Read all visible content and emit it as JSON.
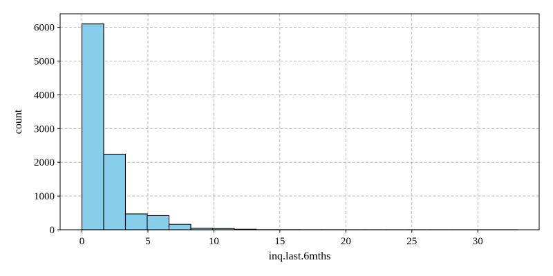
{
  "chart_data": {
    "type": "bar",
    "subtype": "histogram",
    "xlabel": "inq.last.6mths",
    "ylabel": "count",
    "xlim": [
      -1.65,
      34.65
    ],
    "ylim": [
      0,
      6400
    ],
    "xticks": [
      0,
      5,
      10,
      15,
      20,
      25,
      30
    ],
    "yticks": [
      0,
      1000,
      2000,
      3000,
      4000,
      5000,
      6000
    ],
    "grid": true,
    "bar_color": "#87CEEB",
    "edge_color": "#000000",
    "bins": [
      {
        "x0": 0.0,
        "x1": 1.65,
        "count": 6100
      },
      {
        "x0": 1.65,
        "x1": 3.3,
        "count": 2240
      },
      {
        "x0": 3.3,
        "x1": 4.95,
        "count": 470
      },
      {
        "x0": 4.95,
        "x1": 6.6,
        "count": 420
      },
      {
        "x0": 6.6,
        "x1": 8.25,
        "count": 160
      },
      {
        "x0": 8.25,
        "x1": 9.9,
        "count": 45
      },
      {
        "x0": 9.9,
        "x1": 11.55,
        "count": 35
      },
      {
        "x0": 11.55,
        "x1": 13.2,
        "count": 15
      },
      {
        "x0": 13.2,
        "x1": 14.85,
        "count": 4
      },
      {
        "x0": 14.85,
        "x1": 16.5,
        "count": 3
      },
      {
        "x0": 16.5,
        "x1": 18.15,
        "count": 2
      },
      {
        "x0": 18.15,
        "x1": 19.8,
        "count": 2
      },
      {
        "x0": 19.8,
        "x1": 21.45,
        "count": 1
      },
      {
        "x0": 21.45,
        "x1": 23.1,
        "count": 1
      },
      {
        "x0": 23.1,
        "x1": 24.75,
        "count": 1
      },
      {
        "x0": 24.75,
        "x1": 26.4,
        "count": 1
      },
      {
        "x0": 26.4,
        "x1": 28.05,
        "count": 1
      },
      {
        "x0": 28.05,
        "x1": 29.7,
        "count": 1
      },
      {
        "x0": 29.7,
        "x1": 31.35,
        "count": 1
      },
      {
        "x0": 31.35,
        "x1": 33.0,
        "count": 1
      }
    ]
  }
}
